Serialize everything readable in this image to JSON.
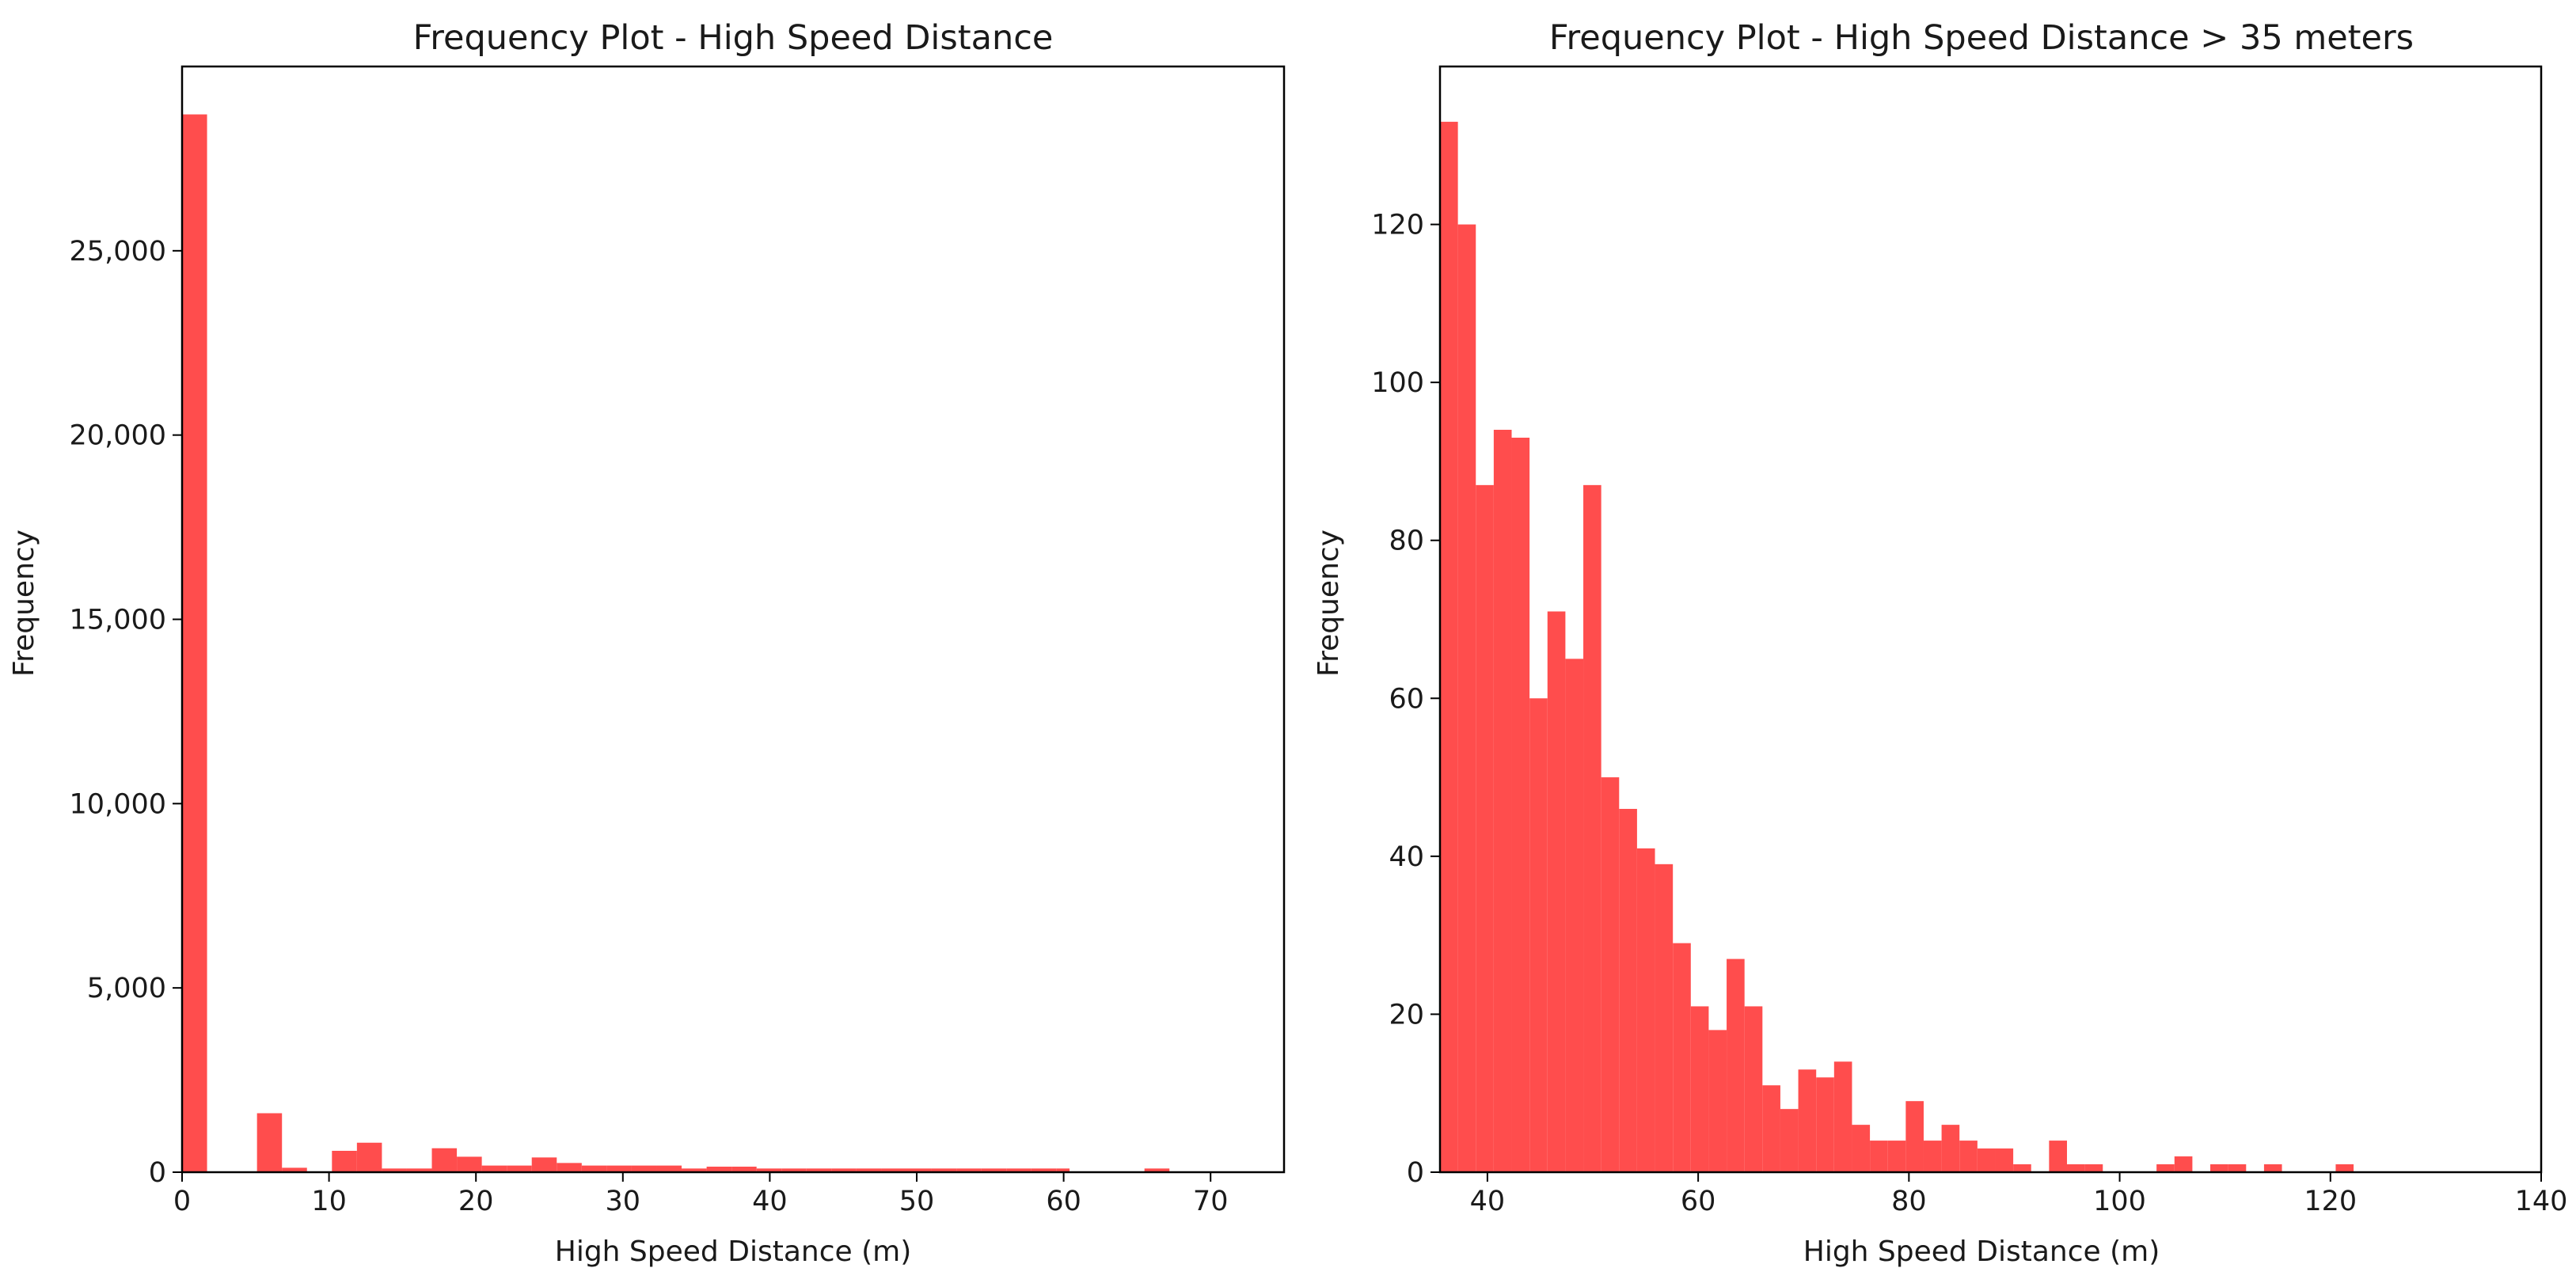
{
  "charts": [
    {
      "chart_data": {
        "type": "bar",
        "title": "Frequency Plot - High Speed Distance",
        "xlabel": "High Speed Distance (m)",
        "ylabel": "Frequency",
        "xlim": [
          0,
          75
        ],
        "ylim": [
          0,
          30000
        ],
        "xticks": [
          0,
          10,
          20,
          30,
          40,
          50,
          60,
          70
        ],
        "yticks": [
          0,
          5000,
          10000,
          15000,
          20000,
          25000
        ],
        "ytick_labels": [
          "0",
          "5,000",
          "10,000",
          "15,000",
          "20,000",
          "25,000"
        ],
        "bar_color": "#ff4d4d",
        "grid": false,
        "bins": [
          {
            "x0": 0.0,
            "x1": 1.7,
            "value": 28700
          },
          {
            "x0": 5.1,
            "x1": 6.8,
            "value": 1600
          },
          {
            "x0": 6.8,
            "x1": 8.5,
            "value": 120
          },
          {
            "x0": 10.2,
            "x1": 11.9,
            "value": 580
          },
          {
            "x0": 11.9,
            "x1": 13.6,
            "value": 800
          },
          {
            "x0": 13.6,
            "x1": 15.3,
            "value": 100
          },
          {
            "x0": 15.3,
            "x1": 17.0,
            "value": 100
          },
          {
            "x0": 17.0,
            "x1": 18.7,
            "value": 650
          },
          {
            "x0": 18.7,
            "x1": 20.4,
            "value": 420
          },
          {
            "x0": 20.4,
            "x1": 22.1,
            "value": 180
          },
          {
            "x0": 22.1,
            "x1": 23.8,
            "value": 180
          },
          {
            "x0": 23.8,
            "x1": 25.5,
            "value": 400
          },
          {
            "x0": 25.5,
            "x1": 27.2,
            "value": 250
          },
          {
            "x0": 27.2,
            "x1": 28.9,
            "value": 180
          },
          {
            "x0": 28.9,
            "x1": 30.6,
            "value": 180
          },
          {
            "x0": 30.6,
            "x1": 32.3,
            "value": 180
          },
          {
            "x0": 32.3,
            "x1": 34.0,
            "value": 180
          },
          {
            "x0": 34.0,
            "x1": 35.7,
            "value": 100
          },
          {
            "x0": 35.7,
            "x1": 37.4,
            "value": 150
          },
          {
            "x0": 37.4,
            "x1": 39.1,
            "value": 150
          },
          {
            "x0": 39.1,
            "x1": 40.8,
            "value": 100
          },
          {
            "x0": 40.8,
            "x1": 42.5,
            "value": 100
          },
          {
            "x0": 42.5,
            "x1": 44.2,
            "value": 100
          },
          {
            "x0": 44.2,
            "x1": 45.9,
            "value": 100
          },
          {
            "x0": 45.9,
            "x1": 47.6,
            "value": 100
          },
          {
            "x0": 47.6,
            "x1": 49.3,
            "value": 100
          },
          {
            "x0": 49.3,
            "x1": 51.0,
            "value": 100
          },
          {
            "x0": 51.0,
            "x1": 52.7,
            "value": 100
          },
          {
            "x0": 52.7,
            "x1": 54.4,
            "value": 100
          },
          {
            "x0": 54.4,
            "x1": 56.1,
            "value": 100
          },
          {
            "x0": 56.1,
            "x1": 57.8,
            "value": 100
          },
          {
            "x0": 57.8,
            "x1": 59.5,
            "value": 100
          },
          {
            "x0": 59.5,
            "x1": 60.4,
            "value": 100
          },
          {
            "x0": 65.5,
            "x1": 67.2,
            "value": 100
          }
        ]
      }
    },
    {
      "chart_data": {
        "type": "bar",
        "title": "Frequency Plot - High Speed Distance > 35 meters",
        "xlabel": "High Speed Distance (m)",
        "ylabel": "Frequency",
        "xlim": [
          35.5,
          140
        ],
        "ylim": [
          0,
          140
        ],
        "xticks": [
          40,
          60,
          80,
          100,
          120,
          140
        ],
        "yticks": [
          0,
          20,
          40,
          60,
          80,
          100,
          120
        ],
        "ytick_labels": [
          "0",
          "20",
          "40",
          "60",
          "80",
          "100",
          "120"
        ],
        "bar_color": "#ff4d4d",
        "grid": false,
        "bin_start": 35.5,
        "bin_width": 1.7,
        "values": [
          133,
          120,
          87,
          94,
          93,
          60,
          71,
          65,
          87,
          50,
          46,
          41,
          39,
          29,
          21,
          18,
          27,
          21,
          11,
          8,
          13,
          12,
          14,
          6,
          4,
          4,
          9,
          4,
          6,
          4,
          3,
          3,
          1,
          0,
          4,
          1,
          1,
          0,
          0,
          0,
          1,
          2,
          0,
          1,
          1,
          0,
          1,
          0,
          0,
          0,
          1,
          0,
          0,
          0,
          0,
          0,
          0,
          0,
          0,
          0,
          0
        ]
      }
    }
  ]
}
